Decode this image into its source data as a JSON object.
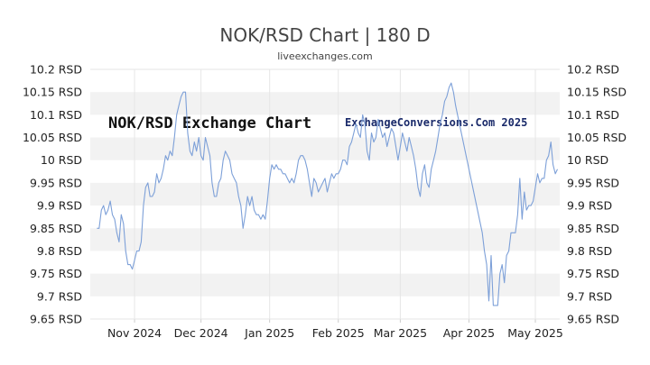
{
  "chart_data": {
    "type": "line",
    "title": "NOK/RSD Chart | 180 D",
    "subtitle": "liveexchanges.com",
    "annotations": [
      "NOK/RSD Exchange Chart",
      "ExchangeConversions.Com 2025"
    ],
    "xlabel": "",
    "ylabel": "",
    "ylim": [
      9.65,
      10.2
    ],
    "y_ticks": [
      "9.65 RSD",
      "9.7 RSD",
      "9.75 RSD",
      "9.8 RSD",
      "9.85 RSD",
      "9.9 RSD",
      "9.95 RSD",
      "10 RSD",
      "10.05 RSD",
      "10.1 RSD",
      "10.15 RSD",
      "10.2 RSD"
    ],
    "x_ticks": [
      "Nov 2024",
      "Dec 2024",
      "Jan 2025",
      "Feb 2025",
      "Mar 2025",
      "Apr 2025",
      "May 2025"
    ],
    "x_range": [
      "2024-10-12",
      "2025-05-12"
    ],
    "grid": "horizontal alternating bands",
    "line_color": "#7da0d8",
    "series": [
      {
        "values": [
          [
            "2024-10-15",
            9.85
          ],
          [
            "2024-10-16",
            9.85
          ],
          [
            "2024-10-17",
            9.89
          ],
          [
            "2024-10-18",
            9.9
          ],
          [
            "2024-10-19",
            9.88
          ],
          [
            "2024-10-20",
            9.89
          ],
          [
            "2024-10-21",
            9.91
          ],
          [
            "2024-10-22",
            9.88
          ],
          [
            "2024-10-23",
            9.87
          ],
          [
            "2024-10-24",
            9.84
          ],
          [
            "2024-10-25",
            9.82
          ],
          [
            "2024-10-26",
            9.88
          ],
          [
            "2024-10-27",
            9.86
          ],
          [
            "2024-10-28",
            9.8
          ],
          [
            "2024-10-29",
            9.77
          ],
          [
            "2024-10-30",
            9.77
          ],
          [
            "2024-10-31",
            9.76
          ],
          [
            "2024-11-01",
            9.78
          ],
          [
            "2024-11-02",
            9.8
          ],
          [
            "2024-11-03",
            9.8
          ],
          [
            "2024-11-04",
            9.82
          ],
          [
            "2024-11-05",
            9.9
          ],
          [
            "2024-11-06",
            9.94
          ],
          [
            "2024-11-07",
            9.95
          ],
          [
            "2024-11-08",
            9.92
          ],
          [
            "2024-11-09",
            9.92
          ],
          [
            "2024-11-10",
            9.93
          ],
          [
            "2024-11-11",
            9.97
          ],
          [
            "2024-11-12",
            9.95
          ],
          [
            "2024-11-13",
            9.96
          ],
          [
            "2024-11-14",
            9.98
          ],
          [
            "2024-11-15",
            10.01
          ],
          [
            "2024-11-16",
            10.0
          ],
          [
            "2024-11-17",
            10.02
          ],
          [
            "2024-11-18",
            10.01
          ],
          [
            "2024-11-19",
            10.05
          ],
          [
            "2024-11-20",
            10.1
          ],
          [
            "2024-11-21",
            10.12
          ],
          [
            "2024-11-22",
            10.14
          ],
          [
            "2024-11-23",
            10.15
          ],
          [
            "2024-11-24",
            10.15
          ],
          [
            "2024-11-25",
            10.06
          ],
          [
            "2024-11-26",
            10.02
          ],
          [
            "2024-11-27",
            10.01
          ],
          [
            "2024-11-28",
            10.04
          ],
          [
            "2024-11-29",
            10.02
          ],
          [
            "2024-11-30",
            10.05
          ],
          [
            "2024-12-01",
            10.01
          ],
          [
            "2024-12-02",
            10.0
          ],
          [
            "2024-12-03",
            10.05
          ],
          [
            "2024-12-04",
            10.03
          ],
          [
            "2024-12-05",
            10.01
          ],
          [
            "2024-12-06",
            9.95
          ],
          [
            "2024-12-07",
            9.92
          ],
          [
            "2024-12-08",
            9.92
          ],
          [
            "2024-12-09",
            9.95
          ],
          [
            "2024-12-10",
            9.96
          ],
          [
            "2024-12-11",
            10.0
          ],
          [
            "2024-12-12",
            10.02
          ],
          [
            "2024-12-13",
            10.01
          ],
          [
            "2024-12-14",
            10.0
          ],
          [
            "2024-12-15",
            9.97
          ],
          [
            "2024-12-16",
            9.96
          ],
          [
            "2024-12-17",
            9.95
          ],
          [
            "2024-12-18",
            9.92
          ],
          [
            "2024-12-19",
            9.9
          ],
          [
            "2024-12-20",
            9.85
          ],
          [
            "2024-12-21",
            9.88
          ],
          [
            "2024-12-22",
            9.92
          ],
          [
            "2024-12-23",
            9.9
          ],
          [
            "2024-12-24",
            9.92
          ],
          [
            "2024-12-25",
            9.89
          ],
          [
            "2024-12-26",
            9.88
          ],
          [
            "2024-12-27",
            9.88
          ],
          [
            "2024-12-28",
            9.87
          ],
          [
            "2024-12-29",
            9.88
          ],
          [
            "2024-12-30",
            9.87
          ],
          [
            "2024-12-31",
            9.91
          ],
          [
            "2025-01-01",
            9.96
          ],
          [
            "2025-01-02",
            9.99
          ],
          [
            "2025-01-03",
            9.98
          ],
          [
            "2025-01-04",
            9.99
          ],
          [
            "2025-01-05",
            9.98
          ],
          [
            "2025-01-06",
            9.98
          ],
          [
            "2025-01-07",
            9.97
          ],
          [
            "2025-01-08",
            9.97
          ],
          [
            "2025-01-09",
            9.96
          ],
          [
            "2025-01-10",
            9.95
          ],
          [
            "2025-01-11",
            9.96
          ],
          [
            "2025-01-12",
            9.95
          ],
          [
            "2025-01-13",
            9.97
          ],
          [
            "2025-01-14",
            10.0
          ],
          [
            "2025-01-15",
            10.01
          ],
          [
            "2025-01-16",
            10.01
          ],
          [
            "2025-01-17",
            10.0
          ],
          [
            "2025-01-18",
            9.98
          ],
          [
            "2025-01-19",
            9.95
          ],
          [
            "2025-01-20",
            9.92
          ],
          [
            "2025-01-21",
            9.96
          ],
          [
            "2025-01-22",
            9.95
          ],
          [
            "2025-01-23",
            9.93
          ],
          [
            "2025-01-24",
            9.94
          ],
          [
            "2025-01-25",
            9.95
          ],
          [
            "2025-01-26",
            9.96
          ],
          [
            "2025-01-27",
            9.93
          ],
          [
            "2025-01-28",
            9.95
          ],
          [
            "2025-01-29",
            9.97
          ],
          [
            "2025-01-30",
            9.96
          ],
          [
            "2025-01-31",
            9.97
          ],
          [
            "2025-02-01",
            9.97
          ],
          [
            "2025-02-02",
            9.98
          ],
          [
            "2025-02-03",
            10.0
          ],
          [
            "2025-02-04",
            10.0
          ],
          [
            "2025-02-05",
            9.99
          ],
          [
            "2025-02-06",
            10.03
          ],
          [
            "2025-02-07",
            10.04
          ],
          [
            "2025-02-08",
            10.06
          ],
          [
            "2025-02-09",
            10.08
          ],
          [
            "2025-02-10",
            10.06
          ],
          [
            "2025-02-11",
            10.05
          ],
          [
            "2025-02-12",
            10.1
          ],
          [
            "2025-02-13",
            10.08
          ],
          [
            "2025-02-14",
            10.02
          ],
          [
            "2025-02-15",
            10.0
          ],
          [
            "2025-02-16",
            10.06
          ],
          [
            "2025-02-17",
            10.04
          ],
          [
            "2025-02-18",
            10.05
          ],
          [
            "2025-02-19",
            10.09
          ],
          [
            "2025-02-20",
            10.07
          ],
          [
            "2025-02-21",
            10.05
          ],
          [
            "2025-02-22",
            10.06
          ],
          [
            "2025-02-23",
            10.03
          ],
          [
            "2025-02-24",
            10.05
          ],
          [
            "2025-02-25",
            10.07
          ],
          [
            "2025-02-26",
            10.06
          ],
          [
            "2025-02-27",
            10.03
          ],
          [
            "2025-02-28",
            10.0
          ],
          [
            "2025-03-01",
            10.03
          ],
          [
            "2025-03-02",
            10.06
          ],
          [
            "2025-03-03",
            10.04
          ],
          [
            "2025-03-04",
            10.02
          ],
          [
            "2025-03-05",
            10.05
          ],
          [
            "2025-03-06",
            10.03
          ],
          [
            "2025-03-07",
            10.01
          ],
          [
            "2025-03-08",
            9.98
          ],
          [
            "2025-03-09",
            9.94
          ],
          [
            "2025-03-10",
            9.92
          ],
          [
            "2025-03-11",
            9.97
          ],
          [
            "2025-03-12",
            9.99
          ],
          [
            "2025-03-13",
            9.95
          ],
          [
            "2025-03-14",
            9.94
          ],
          [
            "2025-03-15",
            9.98
          ],
          [
            "2025-03-16",
            10.0
          ],
          [
            "2025-03-17",
            10.02
          ],
          [
            "2025-03-18",
            10.05
          ],
          [
            "2025-03-19",
            10.08
          ],
          [
            "2025-03-20",
            10.1
          ],
          [
            "2025-03-21",
            10.13
          ],
          [
            "2025-03-22",
            10.14
          ],
          [
            "2025-03-23",
            10.16
          ],
          [
            "2025-03-24",
            10.17
          ],
          [
            "2025-03-25",
            10.15
          ],
          [
            "2025-03-26",
            10.12
          ],
          [
            "2025-04-07",
            9.84
          ],
          [
            "2025-04-08",
            9.8
          ],
          [
            "2025-04-09",
            9.77
          ],
          [
            "2025-04-10",
            9.69
          ],
          [
            "2025-04-11",
            9.79
          ],
          [
            "2025-04-12",
            9.68
          ],
          [
            "2025-04-13",
            9.68
          ],
          [
            "2025-04-14",
            9.68
          ],
          [
            "2025-04-15",
            9.75
          ],
          [
            "2025-04-16",
            9.77
          ],
          [
            "2025-04-17",
            9.73
          ],
          [
            "2025-04-18",
            9.79
          ],
          [
            "2025-04-19",
            9.8
          ],
          [
            "2025-04-20",
            9.84
          ],
          [
            "2025-04-21",
            9.84
          ],
          [
            "2025-04-22",
            9.84
          ],
          [
            "2025-04-23",
            9.88
          ],
          [
            "2025-04-24",
            9.96
          ],
          [
            "2025-04-25",
            9.87
          ],
          [
            "2025-04-26",
            9.93
          ],
          [
            "2025-04-27",
            9.89
          ],
          [
            "2025-04-28",
            9.9
          ],
          [
            "2025-04-29",
            9.9
          ],
          [
            "2025-04-30",
            9.91
          ],
          [
            "2025-05-01",
            9.94
          ],
          [
            "2025-05-02",
            9.97
          ],
          [
            "2025-05-03",
            9.95
          ],
          [
            "2025-05-04",
            9.96
          ],
          [
            "2025-05-05",
            9.96
          ],
          [
            "2025-05-06",
            10.0
          ],
          [
            "2025-05-07",
            10.01
          ],
          [
            "2025-05-08",
            10.04
          ],
          [
            "2025-05-09",
            9.99
          ],
          [
            "2025-05-10",
            9.97
          ],
          [
            "2025-05-11",
            9.98
          ]
        ]
      }
    ]
  }
}
